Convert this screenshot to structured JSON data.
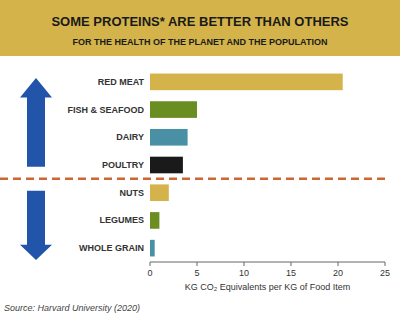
{
  "chart_data": {
    "type": "bar",
    "orientation": "horizontal",
    "title": "SOME PROTEINS* ARE BETTER THAN OTHERS",
    "subtitle": "FOR THE HEALTH OF THE PLANET AND THE POPULATION",
    "categories": [
      "WHOLE GRAIN",
      "LEGUMES",
      "NUTS",
      "POULTRY",
      "DAIRY",
      "FISH & SEAFOOD",
      "RED MEAT"
    ],
    "values": [
      0.5,
      1.0,
      2.0,
      3.5,
      4.0,
      5.0,
      20.5
    ],
    "colors": [
      "#4a90a4",
      "#6b8e23",
      "#d4b44a",
      "#1a1a1a",
      "#4a90a4",
      "#6b8e23",
      "#d4b44a"
    ],
    "xlabel": "KG CO₂ Equivalents per KG of Food Item",
    "xlim": [
      0,
      25
    ],
    "xticks": [
      0,
      5,
      10,
      15,
      20,
      25
    ],
    "grid": false,
    "annotations": [
      "Source: Harvard University (2020)"
    ]
  }
}
